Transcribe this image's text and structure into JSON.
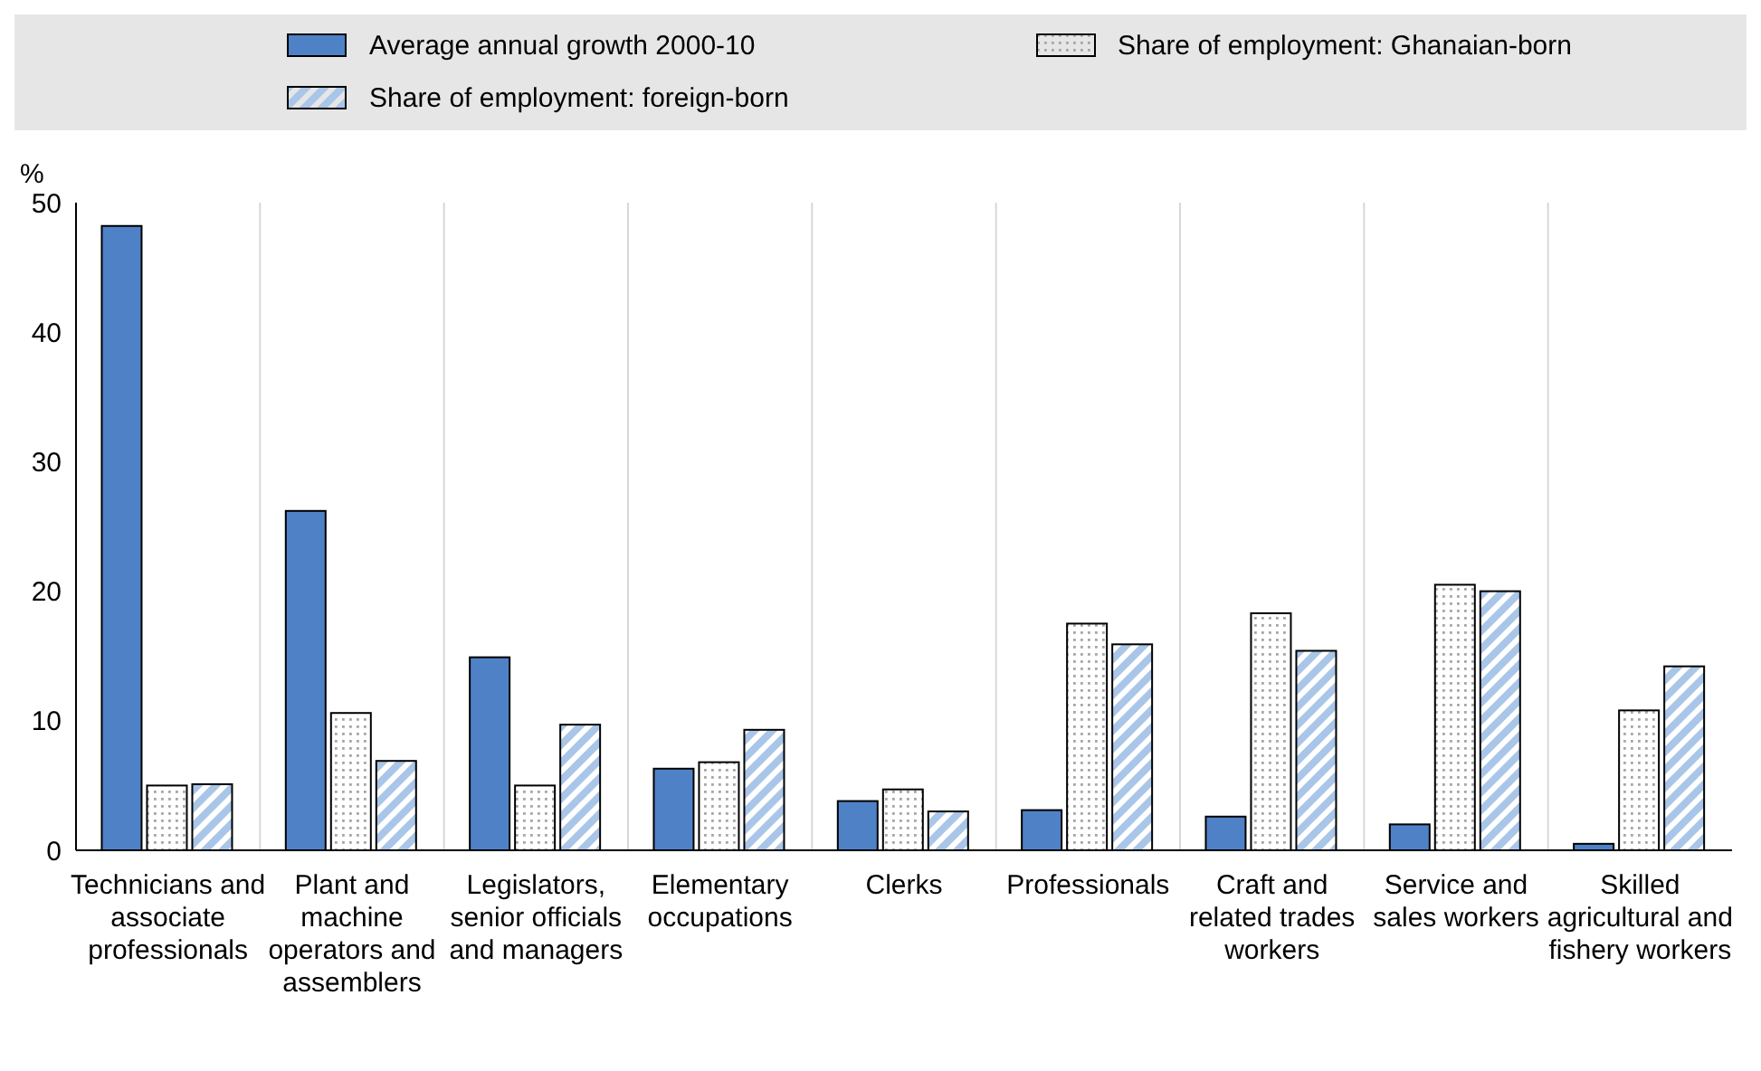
{
  "chart_data": {
    "type": "bar",
    "ylabel": "%",
    "categories": [
      "Technicians and associate professionals",
      "Plant and machine operators and assemblers",
      "Legislators, senior officials and managers",
      "Elementary occupations",
      "Clerks",
      "Professionals",
      "Craft and related trades workers",
      "Service and sales workers",
      "Skilled agricultural and fishery workers"
    ],
    "series": [
      {
        "name": "Average annual growth 2000-10",
        "color": "#4f81c7",
        "values": [
          48.2,
          26.2,
          14.9,
          6.3,
          3.8,
          3.1,
          2.6,
          2.0,
          0.5
        ]
      },
      {
        "name": "Share of employment: Ghanaian-born",
        "color": "#a6a6a6",
        "values": [
          5.0,
          10.6,
          5.0,
          6.8,
          4.7,
          17.5,
          18.3,
          20.5,
          10.8
        ]
      },
      {
        "name": "Share of employment: foreign-born",
        "color": "#a9c6e8",
        "values": [
          5.1,
          6.9,
          9.7,
          9.3,
          3.0,
          15.9,
          15.4,
          20.0,
          14.2
        ]
      }
    ],
    "ylim": [
      0,
      50
    ],
    "yticks": [
      0,
      10,
      20,
      30,
      40,
      50
    ],
    "grid": "x",
    "legend": "top"
  }
}
